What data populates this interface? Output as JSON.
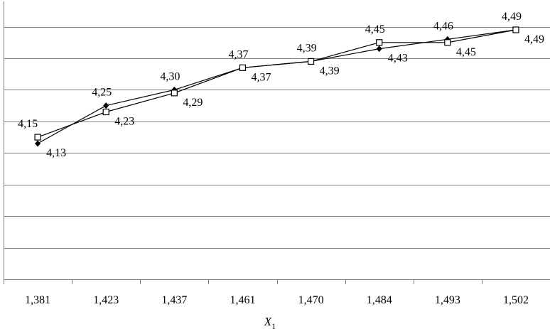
{
  "chart_data": {
    "type": "line",
    "categories": [
      "1,381",
      "1,423",
      "1,437",
      "1,461",
      "1,470",
      "1,484",
      "1,493",
      "1,502"
    ],
    "xlabel": "X",
    "xlabel_subscript": "1",
    "ylabel": "",
    "ylim": [
      3.7,
      4.58
    ],
    "grid": true,
    "series": [
      {
        "marker": "diamond-filled",
        "color": "#000000",
        "values": [
          4.13,
          4.25,
          4.3,
          4.37,
          4.39,
          4.43,
          4.46,
          4.49
        ],
        "labels": [
          "4,13",
          "4,25",
          "4,30",
          "4,37",
          "4,39",
          "4,43",
          "4,46",
          "4,49"
        ]
      },
      {
        "marker": "square-open",
        "color": "#000000",
        "values": [
          4.15,
          4.23,
          4.29,
          4.37,
          4.39,
          4.45,
          4.45,
          4.49
        ],
        "labels": [
          "4,15",
          "4,23",
          "4,29",
          "4,37",
          "4,39",
          "4,45",
          "4,45",
          "4,49"
        ]
      }
    ]
  }
}
